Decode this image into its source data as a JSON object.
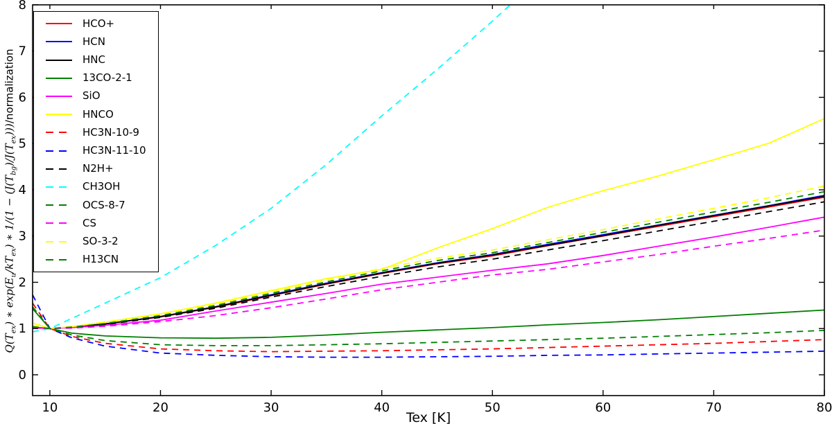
{
  "chart_data": {
    "type": "line",
    "title": "",
    "xlabel": "Tex [K]",
    "ylabel_math": "Q(T_{ex}) * exp(E_{u}/kT_{ex}) * 1/(1 - (J(T_{bg})/J(T_{ex})))",
    "ylabel_suffix": "/normalization",
    "xlim": [
      8.44,
      80
    ],
    "ylim": [
      -0.45,
      8
    ],
    "xticks": [
      10,
      20,
      30,
      40,
      50,
      60,
      70,
      80
    ],
    "yticks": [
      0,
      1,
      2,
      3,
      4,
      5,
      6,
      7,
      8
    ],
    "grid": false,
    "legend_position": "upper left",
    "series": [
      {
        "name": "HCO+",
        "color": "#ff0000",
        "style": "solid",
        "points": [
          [
            8.44,
            1.02
          ],
          [
            10,
            1.0
          ],
          [
            12,
            1.03
          ],
          [
            15,
            1.1
          ],
          [
            20,
            1.25
          ],
          [
            25,
            1.46
          ],
          [
            30,
            1.71
          ],
          [
            35,
            1.96
          ],
          [
            40,
            2.19
          ],
          [
            45,
            2.4
          ],
          [
            50,
            2.57
          ],
          [
            55,
            2.79
          ],
          [
            60,
            3.0
          ],
          [
            65,
            3.21
          ],
          [
            70,
            3.42
          ],
          [
            75,
            3.63
          ],
          [
            80,
            3.84
          ]
        ]
      },
      {
        "name": "HCN",
        "color": "#0000ff",
        "style": "solid",
        "points": [
          [
            8.44,
            1.03
          ],
          [
            10,
            1.0
          ],
          [
            12,
            1.03
          ],
          [
            15,
            1.1
          ],
          [
            20,
            1.26
          ],
          [
            25,
            1.47
          ],
          [
            30,
            1.73
          ],
          [
            35,
            1.98
          ],
          [
            40,
            2.21
          ],
          [
            45,
            2.42
          ],
          [
            50,
            2.6
          ],
          [
            55,
            2.82
          ],
          [
            60,
            3.03
          ],
          [
            65,
            3.24
          ],
          [
            70,
            3.45
          ],
          [
            75,
            3.66
          ],
          [
            80,
            3.88
          ]
        ]
      },
      {
        "name": "HNC",
        "color": "#000000",
        "style": "solid",
        "points": [
          [
            8.44,
            1.02
          ],
          [
            10,
            1.0
          ],
          [
            12,
            1.03
          ],
          [
            15,
            1.1
          ],
          [
            20,
            1.26
          ],
          [
            25,
            1.47
          ],
          [
            30,
            1.72
          ],
          [
            35,
            1.97
          ],
          [
            40,
            2.2
          ],
          [
            45,
            2.41
          ],
          [
            50,
            2.59
          ],
          [
            55,
            2.8
          ],
          [
            60,
            3.01
          ],
          [
            65,
            3.23
          ],
          [
            70,
            3.44
          ],
          [
            75,
            3.65
          ],
          [
            80,
            3.86
          ]
        ]
      },
      {
        "name": "13CO-2-1",
        "color": "#007f00",
        "style": "solid",
        "points": [
          [
            8.44,
            1.43
          ],
          [
            10,
            1.0
          ],
          [
            12,
            0.9
          ],
          [
            15,
            0.84
          ],
          [
            20,
            0.8
          ],
          [
            25,
            0.79
          ],
          [
            30,
            0.81
          ],
          [
            35,
            0.86
          ],
          [
            40,
            0.92
          ],
          [
            45,
            0.97
          ],
          [
            50,
            1.02
          ],
          [
            55,
            1.08
          ],
          [
            60,
            1.13
          ],
          [
            65,
            1.19
          ],
          [
            70,
            1.26
          ],
          [
            75,
            1.33
          ],
          [
            80,
            1.4
          ]
        ]
      },
      {
        "name": "SiO",
        "color": "#ff00ff",
        "style": "solid",
        "points": [
          [
            8.44,
            1.02
          ],
          [
            10,
            1.0
          ],
          [
            12,
            1.02
          ],
          [
            15,
            1.07
          ],
          [
            20,
            1.18
          ],
          [
            25,
            1.38
          ],
          [
            30,
            1.57
          ],
          [
            35,
            1.76
          ],
          [
            40,
            1.96
          ],
          [
            45,
            2.11
          ],
          [
            50,
            2.26
          ],
          [
            55,
            2.4
          ],
          [
            60,
            2.58
          ],
          [
            65,
            2.78
          ],
          [
            70,
            2.98
          ],
          [
            75,
            3.19
          ],
          [
            80,
            3.41
          ]
        ]
      },
      {
        "name": "HNCO",
        "color": "#ffff00",
        "style": "solid",
        "points": [
          [
            8.44,
            1.12
          ],
          [
            10,
            1.0
          ],
          [
            12,
            1.04
          ],
          [
            15,
            1.14
          ],
          [
            20,
            1.32
          ],
          [
            25,
            1.55
          ],
          [
            30,
            1.82
          ],
          [
            35,
            2.08
          ],
          [
            40,
            2.28
          ],
          [
            45,
            2.74
          ],
          [
            50,
            3.16
          ],
          [
            55,
            3.62
          ],
          [
            60,
            3.98
          ],
          [
            65,
            4.3
          ],
          [
            70,
            4.65
          ],
          [
            75,
            5.01
          ],
          [
            80,
            5.54
          ]
        ]
      },
      {
        "name": "HC3N-10-9",
        "color": "#ff0000",
        "style": "dashed",
        "points": [
          [
            8.44,
            1.55
          ],
          [
            10,
            1.0
          ],
          [
            12,
            0.83
          ],
          [
            15,
            0.68
          ],
          [
            20,
            0.56
          ],
          [
            25,
            0.52
          ],
          [
            30,
            0.5
          ],
          [
            35,
            0.51
          ],
          [
            40,
            0.52
          ],
          [
            45,
            0.54
          ],
          [
            50,
            0.56
          ],
          [
            55,
            0.59
          ],
          [
            60,
            0.62
          ],
          [
            65,
            0.65
          ],
          [
            70,
            0.68
          ],
          [
            75,
            0.72
          ],
          [
            80,
            0.76
          ]
        ]
      },
      {
        "name": "HC3N-11-10",
        "color": "#0000ff",
        "style": "dashed",
        "points": [
          [
            8.44,
            1.73
          ],
          [
            10,
            1.0
          ],
          [
            12,
            0.8
          ],
          [
            15,
            0.62
          ],
          [
            20,
            0.47
          ],
          [
            25,
            0.42
          ],
          [
            30,
            0.39
          ],
          [
            35,
            0.38
          ],
          [
            40,
            0.38
          ],
          [
            45,
            0.39
          ],
          [
            50,
            0.4
          ],
          [
            55,
            0.42
          ],
          [
            60,
            0.43
          ],
          [
            65,
            0.45
          ],
          [
            70,
            0.47
          ],
          [
            75,
            0.49
          ],
          [
            80,
            0.51
          ]
        ]
      },
      {
        "name": "N2H+",
        "color": "#000000",
        "style": "dashed",
        "points": [
          [
            8.44,
            1.05
          ],
          [
            10,
            1.0
          ],
          [
            12,
            1.03
          ],
          [
            15,
            1.09
          ],
          [
            20,
            1.24
          ],
          [
            25,
            1.44
          ],
          [
            30,
            1.68
          ],
          [
            35,
            1.91
          ],
          [
            40,
            2.13
          ],
          [
            45,
            2.33
          ],
          [
            50,
            2.5
          ],
          [
            55,
            2.7
          ],
          [
            60,
            2.9
          ],
          [
            65,
            3.11
          ],
          [
            70,
            3.32
          ],
          [
            75,
            3.53
          ],
          [
            80,
            3.74
          ]
        ]
      },
      {
        "name": "CH3OH",
        "color": "#00ffff",
        "style": "dashed",
        "points": [
          [
            8.44,
            0.93
          ],
          [
            10,
            1.0
          ],
          [
            15,
            1.55
          ],
          [
            20,
            2.1
          ],
          [
            25,
            2.8
          ],
          [
            30,
            3.6
          ],
          [
            35,
            4.55
          ],
          [
            40,
            5.6
          ],
          [
            45,
            6.6
          ],
          [
            50,
            7.65
          ],
          [
            52.3,
            8.15
          ]
        ]
      },
      {
        "name": "OCS-8-7",
        "color": "#007f00",
        "style": "dashed",
        "points": [
          [
            8.44,
            1.47
          ],
          [
            10,
            1.0
          ],
          [
            12,
            0.86
          ],
          [
            15,
            0.74
          ],
          [
            20,
            0.65
          ],
          [
            25,
            0.63
          ],
          [
            30,
            0.63
          ],
          [
            35,
            0.65
          ],
          [
            40,
            0.67
          ],
          [
            45,
            0.7
          ],
          [
            50,
            0.73
          ],
          [
            55,
            0.76
          ],
          [
            60,
            0.79
          ],
          [
            65,
            0.83
          ],
          [
            70,
            0.87
          ],
          [
            75,
            0.91
          ],
          [
            80,
            0.96
          ]
        ]
      },
      {
        "name": "CS",
        "color": "#ff00ff",
        "style": "dashed",
        "points": [
          [
            8.44,
            1.02
          ],
          [
            10,
            1.0
          ],
          [
            12,
            1.01
          ],
          [
            15,
            1.05
          ],
          [
            20,
            1.15
          ],
          [
            25,
            1.28
          ],
          [
            30,
            1.45
          ],
          [
            35,
            1.64
          ],
          [
            40,
            1.84
          ],
          [
            45,
            2.0
          ],
          [
            50,
            2.16
          ],
          [
            55,
            2.28
          ],
          [
            60,
            2.44
          ],
          [
            65,
            2.6
          ],
          [
            70,
            2.78
          ],
          [
            75,
            2.95
          ],
          [
            80,
            3.13
          ]
        ]
      },
      {
        "name": "SO-3-2",
        "color": "#ffff00",
        "style": "dashed",
        "points": [
          [
            8.44,
            1.06
          ],
          [
            10,
            1.0
          ],
          [
            12,
            1.04
          ],
          [
            15,
            1.12
          ],
          [
            20,
            1.3
          ],
          [
            25,
            1.52
          ],
          [
            30,
            1.79
          ],
          [
            35,
            2.05
          ],
          [
            40,
            2.3
          ],
          [
            45,
            2.52
          ],
          [
            50,
            2.7
          ],
          [
            55,
            2.92
          ],
          [
            60,
            3.14
          ],
          [
            65,
            3.37
          ],
          [
            70,
            3.6
          ],
          [
            75,
            3.83
          ],
          [
            80,
            4.08
          ]
        ]
      },
      {
        "name": "H13CN",
        "color": "#007f00",
        "style": "dashed",
        "points": [
          [
            8.44,
            1.04
          ],
          [
            10,
            1.0
          ],
          [
            12,
            1.03
          ],
          [
            15,
            1.11
          ],
          [
            20,
            1.28
          ],
          [
            25,
            1.5
          ],
          [
            30,
            1.76
          ],
          [
            35,
            2.01
          ],
          [
            40,
            2.25
          ],
          [
            45,
            2.47
          ],
          [
            50,
            2.64
          ],
          [
            55,
            2.86
          ],
          [
            60,
            3.08
          ],
          [
            65,
            3.3
          ],
          [
            70,
            3.52
          ],
          [
            75,
            3.73
          ],
          [
            80,
            3.96
          ]
        ]
      }
    ]
  }
}
